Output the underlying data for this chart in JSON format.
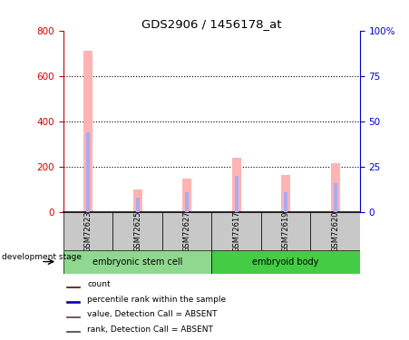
{
  "title": "GDS2906 / 1456178_at",
  "categories": [
    "GSM72623",
    "GSM72625",
    "GSM72627",
    "GSM72617",
    "GSM72619",
    "GSM72620"
  ],
  "group_labels": [
    "embryonic stem cell",
    "embryoid body"
  ],
  "pink_bar_values": [
    710,
    100,
    148,
    240,
    165,
    215
  ],
  "blue_bar_values_pct": [
    44,
    8,
    11,
    20,
    11,
    16
  ],
  "ylim_left": [
    0,
    800
  ],
  "ylim_right": [
    0,
    100
  ],
  "yticks_left": [
    0,
    200,
    400,
    600,
    800
  ],
  "yticks_right": [
    0,
    25,
    50,
    75,
    100
  ],
  "yticklabels_right": [
    "0",
    "25",
    "50",
    "75",
    "100%"
  ],
  "left_axis_color": "#cc0000",
  "right_axis_color": "#0000cc",
  "pink_color": "#ffb3b3",
  "blue_color": "#aaaaee",
  "gray_bg": "#c8c8c8",
  "green1_color": "#90d890",
  "green2_color": "#44cc44",
  "development_stage_label": "development stage",
  "legend_items": [
    {
      "color": "#cc0000",
      "label": "count"
    },
    {
      "color": "#0000cc",
      "label": "percentile rank within the sample"
    },
    {
      "color": "#ffb3b3",
      "label": "value, Detection Call = ABSENT"
    },
    {
      "color": "#aaaaee",
      "label": "rank, Detection Call = ABSENT"
    }
  ]
}
